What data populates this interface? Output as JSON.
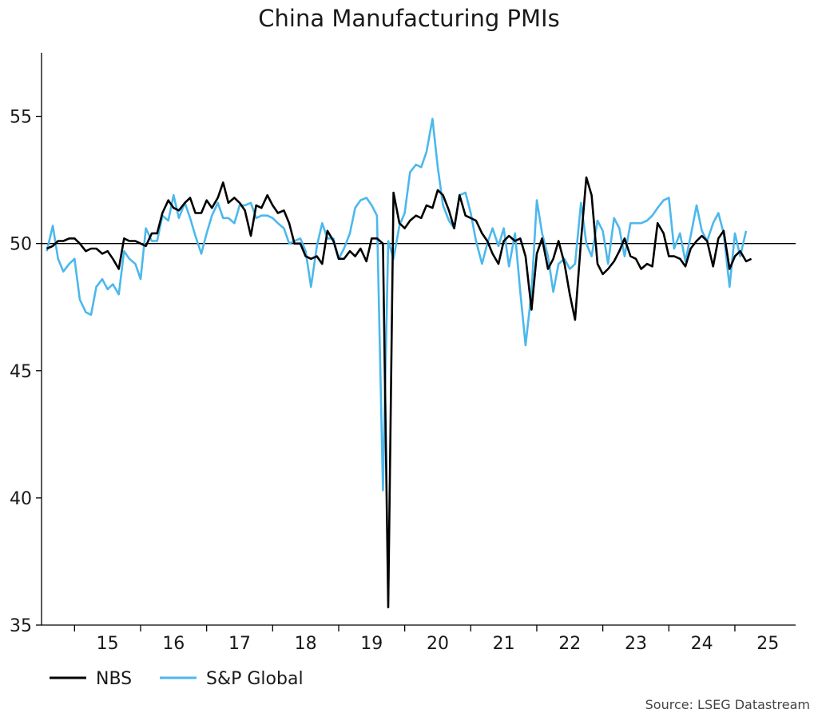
{
  "chart_data": {
    "type": "line",
    "title": "China Manufacturing PMIs",
    "xlabel": "",
    "ylabel": "",
    "ylim": [
      35,
      57.5
    ],
    "xlim": [
      2014.5,
      2025.92
    ],
    "reference_line": 50,
    "y_ticks": [
      "35",
      "40",
      "45",
      "50",
      "55"
    ],
    "y_tick_values": [
      35,
      40,
      45,
      50,
      55
    ],
    "x_tick_labels": [
      "15",
      "16",
      "17",
      "18",
      "19",
      "20",
      "21",
      "22",
      "23",
      "24",
      "25"
    ],
    "x_tick_centers": [
      2015.5,
      2016.5,
      2017.5,
      2018.5,
      2019.5,
      2020.5,
      2021.5,
      2022.5,
      2023.5,
      2024.5,
      2025.5
    ],
    "x_tick_boundaries": [
      2015,
      2016,
      2017,
      2018,
      2019,
      2020,
      2021,
      2022,
      2023,
      2024,
      2025
    ],
    "grid": false,
    "legend_position": "bottom-left",
    "source": "Source: LSEG Datastream",
    "series": [
      {
        "name": "NBS",
        "color": "#000000",
        "points": [
          [
            2014.58,
            49.8
          ],
          [
            2014.67,
            49.9
          ],
          [
            2014.75,
            50.1
          ],
          [
            2014.83,
            50.1
          ],
          [
            2014.92,
            50.2
          ],
          [
            2015.0,
            50.2
          ],
          [
            2015.08,
            50.0
          ],
          [
            2015.17,
            49.7
          ],
          [
            2015.25,
            49.8
          ],
          [
            2015.33,
            49.8
          ],
          [
            2015.42,
            49.6
          ],
          [
            2015.5,
            49.7
          ],
          [
            2015.58,
            49.4
          ],
          [
            2015.67,
            49.0
          ],
          [
            2015.75,
            50.2
          ],
          [
            2015.83,
            50.1
          ],
          [
            2015.92,
            50.1
          ],
          [
            2016.0,
            50.0
          ],
          [
            2016.08,
            49.9
          ],
          [
            2016.17,
            50.4
          ],
          [
            2016.25,
            50.4
          ],
          [
            2016.33,
            51.2
          ],
          [
            2016.42,
            51.7
          ],
          [
            2016.5,
            51.4
          ],
          [
            2016.58,
            51.3
          ],
          [
            2016.67,
            51.6
          ],
          [
            2016.75,
            51.8
          ],
          [
            2016.83,
            51.2
          ],
          [
            2016.92,
            51.2
          ],
          [
            2017.0,
            51.7
          ],
          [
            2017.08,
            51.4
          ],
          [
            2017.17,
            51.8
          ],
          [
            2017.25,
            52.4
          ],
          [
            2017.33,
            51.6
          ],
          [
            2017.42,
            51.8
          ],
          [
            2017.5,
            51.6
          ],
          [
            2017.58,
            51.3
          ],
          [
            2017.67,
            50.3
          ],
          [
            2017.75,
            51.5
          ],
          [
            2017.83,
            51.4
          ],
          [
            2017.92,
            51.9
          ],
          [
            2018.0,
            51.5
          ],
          [
            2018.08,
            51.2
          ],
          [
            2018.17,
            51.3
          ],
          [
            2018.25,
            50.8
          ],
          [
            2018.33,
            50.0
          ],
          [
            2018.42,
            50.0
          ],
          [
            2018.5,
            49.5
          ],
          [
            2018.58,
            49.4
          ],
          [
            2018.67,
            49.5
          ],
          [
            2018.75,
            49.2
          ],
          [
            2018.83,
            50.5
          ],
          [
            2018.92,
            50.1
          ],
          [
            2019.0,
            49.4
          ],
          [
            2019.08,
            49.4
          ],
          [
            2019.17,
            49.7
          ],
          [
            2019.25,
            49.5
          ],
          [
            2019.33,
            49.8
          ],
          [
            2019.42,
            49.3
          ],
          [
            2019.5,
            50.2
          ],
          [
            2019.58,
            50.2
          ],
          [
            2019.67,
            50.0
          ],
          [
            2019.75,
            35.7
          ],
          [
            2019.83,
            52.0
          ],
          [
            2019.92,
            50.8
          ],
          [
            2020.0,
            50.6
          ],
          [
            2020.08,
            50.9
          ],
          [
            2020.17,
            51.1
          ],
          [
            2020.25,
            51.0
          ],
          [
            2020.33,
            51.5
          ],
          [
            2020.42,
            51.4
          ],
          [
            2020.5,
            52.1
          ],
          [
            2020.58,
            51.9
          ],
          [
            2020.67,
            51.3
          ],
          [
            2020.75,
            50.6
          ],
          [
            2020.83,
            51.9
          ],
          [
            2020.92,
            51.1
          ],
          [
            2021.0,
            51.0
          ],
          [
            2021.08,
            50.9
          ],
          [
            2021.17,
            50.4
          ],
          [
            2021.25,
            50.1
          ],
          [
            2021.33,
            49.6
          ],
          [
            2021.42,
            49.2
          ],
          [
            2021.5,
            50.1
          ],
          [
            2021.58,
            50.3
          ],
          [
            2021.67,
            50.1
          ],
          [
            2021.75,
            50.2
          ],
          [
            2021.83,
            49.5
          ],
          [
            2021.92,
            47.4
          ],
          [
            2022.0,
            49.6
          ],
          [
            2022.08,
            50.2
          ],
          [
            2022.17,
            49.0
          ],
          [
            2022.25,
            49.4
          ],
          [
            2022.33,
            50.1
          ],
          [
            2022.42,
            49.2
          ],
          [
            2022.5,
            48.0
          ],
          [
            2022.58,
            47.0
          ],
          [
            2022.67,
            50.1
          ],
          [
            2022.75,
            52.6
          ],
          [
            2022.83,
            51.9
          ],
          [
            2022.92,
            49.2
          ],
          [
            2023.0,
            48.8
          ],
          [
            2023.08,
            49.0
          ],
          [
            2023.17,
            49.3
          ],
          [
            2023.25,
            49.7
          ],
          [
            2023.33,
            50.2
          ],
          [
            2023.42,
            49.5
          ],
          [
            2023.5,
            49.4
          ],
          [
            2023.58,
            49.0
          ],
          [
            2023.67,
            49.2
          ],
          [
            2023.75,
            49.1
          ],
          [
            2023.83,
            50.8
          ],
          [
            2023.92,
            50.4
          ],
          [
            2024.0,
            49.5
          ],
          [
            2024.08,
            49.5
          ],
          [
            2024.17,
            49.4
          ],
          [
            2024.25,
            49.1
          ],
          [
            2024.33,
            49.8
          ],
          [
            2024.42,
            50.1
          ],
          [
            2024.5,
            50.3
          ],
          [
            2024.58,
            50.1
          ],
          [
            2024.67,
            49.1
          ],
          [
            2024.75,
            50.2
          ],
          [
            2024.83,
            50.5
          ],
          [
            2024.92,
            49.0
          ],
          [
            2025.0,
            49.5
          ],
          [
            2025.08,
            49.7
          ],
          [
            2025.17,
            49.3
          ],
          [
            2025.25,
            49.4
          ]
        ]
      },
      {
        "name": "S&P Global",
        "color": "#4cb8ec",
        "points": [
          [
            2014.58,
            49.7
          ],
          [
            2014.67,
            50.7
          ],
          [
            2014.75,
            49.4
          ],
          [
            2014.83,
            48.9
          ],
          [
            2014.92,
            49.2
          ],
          [
            2015.0,
            49.4
          ],
          [
            2015.08,
            47.8
          ],
          [
            2015.17,
            47.3
          ],
          [
            2015.25,
            47.2
          ],
          [
            2015.33,
            48.3
          ],
          [
            2015.42,
            48.6
          ],
          [
            2015.5,
            48.2
          ],
          [
            2015.58,
            48.4
          ],
          [
            2015.67,
            48.0
          ],
          [
            2015.75,
            49.7
          ],
          [
            2015.83,
            49.4
          ],
          [
            2015.92,
            49.2
          ],
          [
            2016.0,
            48.6
          ],
          [
            2016.08,
            50.6
          ],
          [
            2016.17,
            50.1
          ],
          [
            2016.25,
            50.1
          ],
          [
            2016.33,
            51.1
          ],
          [
            2016.42,
            50.9
          ],
          [
            2016.5,
            51.9
          ],
          [
            2016.58,
            51.0
          ],
          [
            2016.67,
            51.6
          ],
          [
            2016.75,
            51.0
          ],
          [
            2016.83,
            50.3
          ],
          [
            2016.92,
            49.6
          ],
          [
            2017.0,
            50.4
          ],
          [
            2017.08,
            51.1
          ],
          [
            2017.17,
            51.6
          ],
          [
            2017.25,
            51.0
          ],
          [
            2017.33,
            51.0
          ],
          [
            2017.42,
            50.8
          ],
          [
            2017.5,
            51.5
          ],
          [
            2017.58,
            51.5
          ],
          [
            2017.67,
            51.6
          ],
          [
            2017.75,
            51.0
          ],
          [
            2017.83,
            51.1
          ],
          [
            2017.92,
            51.1
          ],
          [
            2018.0,
            51.0
          ],
          [
            2018.08,
            50.8
          ],
          [
            2018.17,
            50.6
          ],
          [
            2018.25,
            50.0
          ],
          [
            2018.33,
            50.1
          ],
          [
            2018.42,
            50.2
          ],
          [
            2018.5,
            49.7
          ],
          [
            2018.58,
            48.3
          ],
          [
            2018.67,
            49.9
          ],
          [
            2018.75,
            50.8
          ],
          [
            2018.83,
            50.2
          ],
          [
            2018.92,
            50.2
          ],
          [
            2019.0,
            49.4
          ],
          [
            2019.08,
            49.8
          ],
          [
            2019.17,
            50.4
          ],
          [
            2019.25,
            51.4
          ],
          [
            2019.33,
            51.7
          ],
          [
            2019.42,
            51.8
          ],
          [
            2019.5,
            51.5
          ],
          [
            2019.58,
            51.1
          ],
          [
            2019.67,
            40.3
          ],
          [
            2019.75,
            50.1
          ],
          [
            2019.83,
            49.4
          ],
          [
            2019.92,
            50.7
          ],
          [
            2020.0,
            51.2
          ],
          [
            2020.08,
            52.8
          ],
          [
            2020.17,
            53.1
          ],
          [
            2020.25,
            53.0
          ],
          [
            2020.33,
            53.6
          ],
          [
            2020.42,
            54.9
          ],
          [
            2020.5,
            53.0
          ],
          [
            2020.58,
            51.5
          ],
          [
            2020.67,
            50.9
          ],
          [
            2020.75,
            50.6
          ],
          [
            2020.83,
            51.9
          ],
          [
            2020.92,
            52.0
          ],
          [
            2021.0,
            51.2
          ],
          [
            2021.08,
            50.1
          ],
          [
            2021.17,
            49.2
          ],
          [
            2021.25,
            50.0
          ],
          [
            2021.33,
            50.6
          ],
          [
            2021.42,
            49.9
          ],
          [
            2021.5,
            50.6
          ],
          [
            2021.58,
            49.1
          ],
          [
            2021.67,
            50.4
          ],
          [
            2021.75,
            48.1
          ],
          [
            2021.83,
            46.0
          ],
          [
            2021.92,
            48.1
          ],
          [
            2022.0,
            51.7
          ],
          [
            2022.08,
            50.4
          ],
          [
            2022.17,
            49.5
          ],
          [
            2022.25,
            48.1
          ],
          [
            2022.33,
            49.2
          ],
          [
            2022.42,
            49.4
          ],
          [
            2022.5,
            49.0
          ],
          [
            2022.58,
            49.2
          ],
          [
            2022.67,
            51.6
          ],
          [
            2022.75,
            50.0
          ],
          [
            2022.83,
            49.5
          ],
          [
            2022.92,
            50.9
          ],
          [
            2023.0,
            50.5
          ],
          [
            2023.08,
            49.2
          ],
          [
            2023.17,
            51.0
          ],
          [
            2023.25,
            50.6
          ],
          [
            2023.33,
            49.5
          ],
          [
            2023.42,
            50.8
          ],
          [
            2023.5,
            50.8
          ],
          [
            2023.58,
            50.8
          ],
          [
            2023.67,
            50.9
          ],
          [
            2023.75,
            51.1
          ],
          [
            2023.83,
            51.4
          ],
          [
            2023.92,
            51.7
          ],
          [
            2024.0,
            51.8
          ],
          [
            2024.08,
            49.8
          ],
          [
            2024.17,
            50.4
          ],
          [
            2024.25,
            49.3
          ],
          [
            2024.33,
            50.3
          ],
          [
            2024.42,
            51.5
          ],
          [
            2024.5,
            50.5
          ],
          [
            2024.58,
            50.1
          ],
          [
            2024.67,
            50.8
          ],
          [
            2024.75,
            51.2
          ],
          [
            2024.83,
            50.4
          ],
          [
            2024.92,
            48.3
          ],
          [
            2025.0,
            50.4
          ],
          [
            2025.08,
            49.5
          ],
          [
            2025.17,
            50.5
          ]
        ]
      }
    ]
  }
}
